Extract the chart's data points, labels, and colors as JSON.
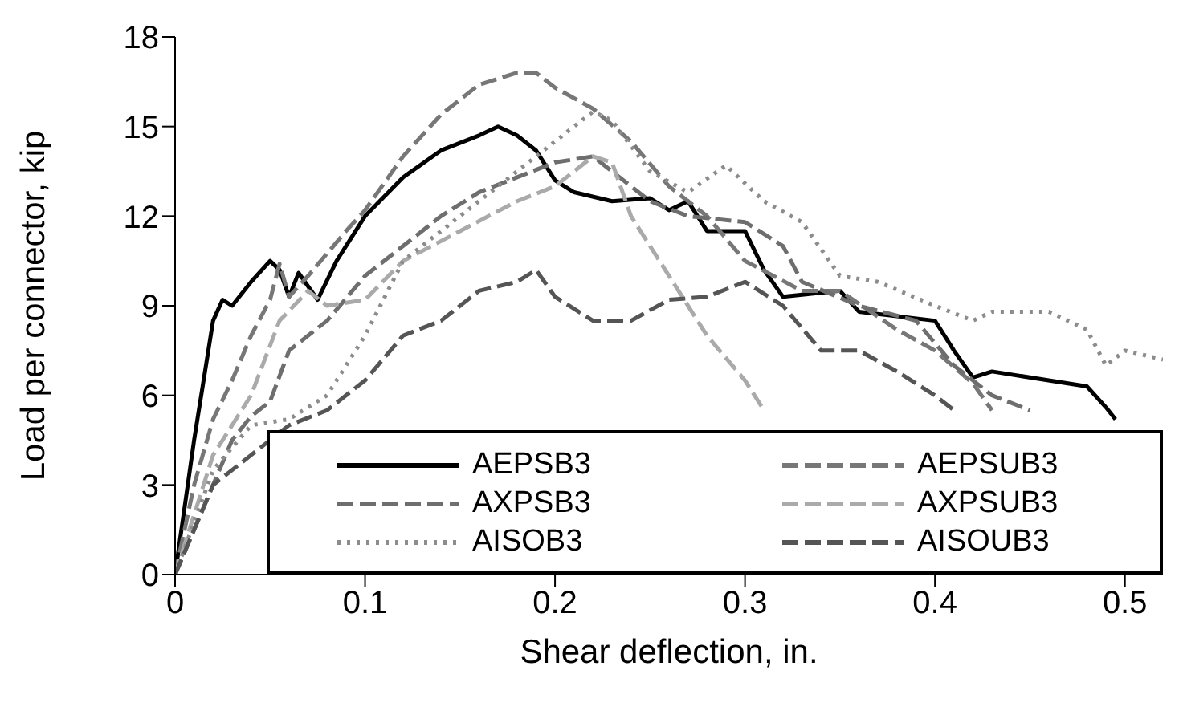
{
  "chart_data": {
    "type": "line",
    "xlabel": "Shear deflection, in.",
    "ylabel": "Load per connector, kip",
    "xlim": [
      0,
      0.52
    ],
    "xticks": [
      0,
      0.1,
      0.2,
      0.3,
      0.4,
      0.5
    ],
    "ylim": [
      0,
      18
    ],
    "yticks": [
      0,
      3,
      6,
      9,
      12,
      15,
      18
    ],
    "grid": false,
    "legend": "bottom right",
    "marker": "none",
    "series": [
      {
        "name": "AEPSB3",
        "color": "#000000",
        "line_style": "solid",
        "x": [
          0,
          0.01,
          0.02,
          0.025,
          0.03,
          0.04,
          0.05,
          0.055,
          0.06,
          0.065,
          0.075,
          0.085,
          0.1,
          0.12,
          0.14,
          0.16,
          0.17,
          0.18,
          0.19,
          0.2,
          0.21,
          0.23,
          0.25,
          0.26,
          0.27,
          0.28,
          0.3,
          0.31,
          0.32,
          0.35,
          0.36,
          0.4,
          0.41,
          0.42,
          0.43,
          0.48,
          0.49,
          0.495
        ],
        "values": [
          0,
          4.5,
          8.5,
          9.2,
          9,
          9.8,
          10.5,
          10.2,
          9.3,
          10.1,
          9.2,
          10.5,
          12,
          13.3,
          14.2,
          14.7,
          15,
          14.7,
          14.2,
          13.2,
          12.8,
          12.5,
          12.6,
          12.2,
          12.5,
          11.5,
          11.5,
          10.2,
          9.3,
          9.5,
          8.8,
          8.5,
          7.5,
          6.6,
          6.8,
          6.3,
          5.6,
          5.2
        ]
      },
      {
        "name": "AEPSUB3",
        "color": "#777777",
        "line_style": "dashed",
        "x": [
          0,
          0.01,
          0.02,
          0.03,
          0.04,
          0.05,
          0.055,
          0.06,
          0.07,
          0.09,
          0.1,
          0.12,
          0.14,
          0.16,
          0.18,
          0.19,
          0.2,
          0.22,
          0.24,
          0.26,
          0.28,
          0.3,
          0.33,
          0.35,
          0.38,
          0.4,
          0.42,
          0.43
        ],
        "values": [
          0,
          3,
          5.2,
          6.5,
          8,
          9.2,
          10.4,
          9.3,
          10,
          11.5,
          12.2,
          14,
          15.4,
          16.4,
          16.8,
          16.8,
          16.3,
          15.6,
          14.5,
          13,
          12,
          10.5,
          9.5,
          9.5,
          8.2,
          7.5,
          6.4,
          5.5
        ]
      },
      {
        "name": "AXPSB3",
        "color": "#6e6e6e",
        "line_style": "dashed",
        "x": [
          0,
          0.02,
          0.03,
          0.04,
          0.05,
          0.06,
          0.08,
          0.1,
          0.12,
          0.14,
          0.16,
          0.18,
          0.2,
          0.22,
          0.23,
          0.25,
          0.27,
          0.3,
          0.32,
          0.33,
          0.36,
          0.39,
          0.41,
          0.43,
          0.45
        ],
        "values": [
          0,
          3,
          4.5,
          5.3,
          5.8,
          7.5,
          8.5,
          10,
          11,
          12,
          12.8,
          13.3,
          13.8,
          14,
          13.5,
          12.5,
          12,
          11.8,
          11,
          9.8,
          9,
          8.5,
          7,
          6,
          5.5
        ]
      },
      {
        "name": "AXPSUB3",
        "color": "#aaaaaa",
        "line_style": "dashed",
        "x": [
          0,
          0.02,
          0.04,
          0.055,
          0.07,
          0.08,
          0.1,
          0.12,
          0.15,
          0.18,
          0.2,
          0.22,
          0.23,
          0.24,
          0.26,
          0.28,
          0.3,
          0.31
        ],
        "values": [
          0,
          4,
          6,
          8.5,
          9.5,
          9,
          9.2,
          10.5,
          11.5,
          12.5,
          13,
          14,
          13.8,
          12,
          10,
          8,
          6.5,
          5.5
        ]
      },
      {
        "name": "AISOB3",
        "color": "#8c8c8c",
        "line_style": "dotted",
        "x": [
          0,
          0.02,
          0.04,
          0.06,
          0.08,
          0.1,
          0.12,
          0.15,
          0.18,
          0.2,
          0.22,
          0.23,
          0.25,
          0.27,
          0.29,
          0.31,
          0.33,
          0.35,
          0.37,
          0.4,
          0.42,
          0.43,
          0.46,
          0.48,
          0.49,
          0.5,
          0.52
        ],
        "values": [
          0,
          3.5,
          5,
          5.2,
          6,
          8,
          10.5,
          12,
          13.5,
          14.5,
          15.5,
          15.2,
          13.5,
          12.8,
          13.7,
          12.5,
          11.8,
          10,
          9.8,
          9,
          8.5,
          8.8,
          8.8,
          8.2,
          7,
          7.5,
          7.2
        ]
      },
      {
        "name": "AISOUB3",
        "color": "#555555",
        "line_style": "dashed",
        "x": [
          0,
          0.02,
          0.04,
          0.06,
          0.08,
          0.1,
          0.12,
          0.14,
          0.16,
          0.18,
          0.19,
          0.2,
          0.22,
          0.24,
          0.26,
          0.28,
          0.3,
          0.32,
          0.34,
          0.36,
          0.38,
          0.4,
          0.41
        ],
        "values": [
          0,
          3,
          4,
          5,
          5.5,
          6.5,
          8,
          8.5,
          9.5,
          9.8,
          10.2,
          9.3,
          8.5,
          8.5,
          9.2,
          9.3,
          9.8,
          9,
          7.5,
          7.5,
          6.8,
          6,
          5.5
        ]
      }
    ]
  }
}
